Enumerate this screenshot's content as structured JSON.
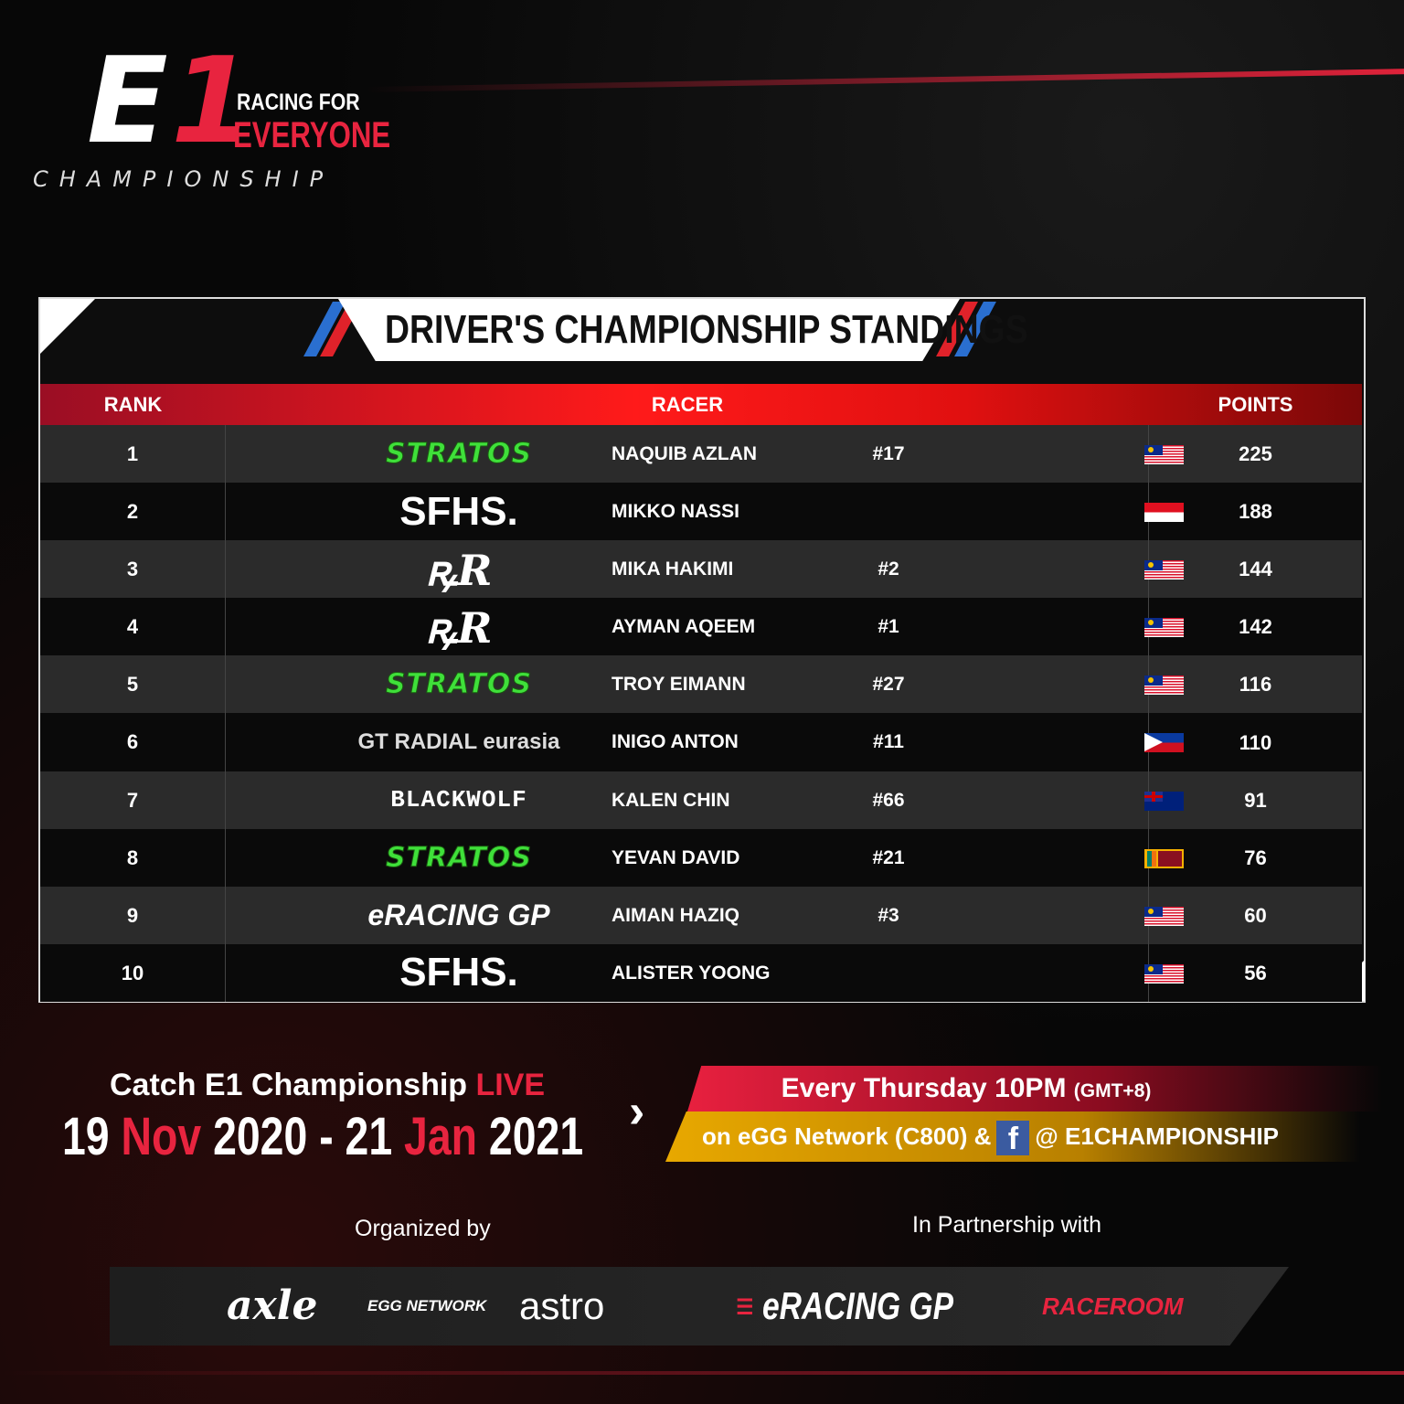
{
  "brand": {
    "logo_text": "E1",
    "tagline_top": "RACING FOR",
    "tagline_bottom": "EVERYONE",
    "subtitle": "CHAMPIONSHIP",
    "accent": "#e8243f"
  },
  "title": "DRIVER'S CHAMPIONSHIP STANDINGS",
  "table": {
    "headers": {
      "rank": "RANK",
      "racer": "RACER",
      "points": "POINTS"
    },
    "rows": [
      {
        "rank": "1",
        "team": "STRATOS",
        "team_style": "stratos",
        "name": "NAQUIB AZLAN",
        "number": "#17",
        "flag": "malaysia",
        "points": "225"
      },
      {
        "rank": "2",
        "team": "SFHS.",
        "team_style": "sfhs",
        "name": "MIKKO NASSI",
        "number": "",
        "flag": "singapore",
        "points": "188"
      },
      {
        "rank": "3",
        "team": "ꝶR",
        "team_style": "r",
        "name": "MIKA HAKIMI",
        "number": "#2",
        "flag": "malaysia",
        "points": "144"
      },
      {
        "rank": "4",
        "team": "ꝶR",
        "team_style": "r",
        "name": "AYMAN AQEEM",
        "number": "#1",
        "flag": "malaysia",
        "points": "142"
      },
      {
        "rank": "5",
        "team": "STRATOS",
        "team_style": "stratos",
        "name": "TROY EIMANN",
        "number": "#27",
        "flag": "malaysia",
        "points": "116"
      },
      {
        "rank": "6",
        "team": "GT RADIAL eurasia",
        "team_style": "gt",
        "name": "INIGO ANTON",
        "number": "#11",
        "flag": "philippines",
        "points": "110"
      },
      {
        "rank": "7",
        "team": "BLACKWOLF",
        "team_style": "bw",
        "name": "KALEN CHIN",
        "number": "#66",
        "flag": "australia",
        "points": "91"
      },
      {
        "rank": "8",
        "team": "STRATOS",
        "team_style": "stratos",
        "name": "YEVAN DAVID",
        "number": "#21",
        "flag": "sri-lanka",
        "points": "76"
      },
      {
        "rank": "9",
        "team": "eRACING GP",
        "team_style": "egp",
        "name": "AIMAN HAZIQ",
        "number": "#3",
        "flag": "malaysia",
        "points": "60"
      },
      {
        "rank": "10",
        "team": "SFHS.",
        "team_style": "sfhs",
        "name": "ALISTER YOONG",
        "number": "",
        "flag": "malaysia",
        "points": "56"
      }
    ]
  },
  "promo": {
    "catch": "Catch E1 Championship",
    "live": "LIVE",
    "d1": "19",
    "m1": "Nov",
    "y1": "2020 - 21",
    "m2": "Jan",
    "y2": "2021",
    "chevron": "›",
    "schedule": "Every Thursday 10PM",
    "timezone": "(GMT+8)",
    "channel": "on eGG Network (C800) &",
    "fb_icon": "f",
    "handle": "@ E1CHAMPIONSHIP"
  },
  "sponsors": {
    "organized_label": "Organized by",
    "partner_label": "In Partnership with",
    "organizers": [
      "axle",
      "EGG NETWORK",
      "astro"
    ],
    "partners": [
      "eRACING GP",
      "RACEROOM"
    ]
  }
}
